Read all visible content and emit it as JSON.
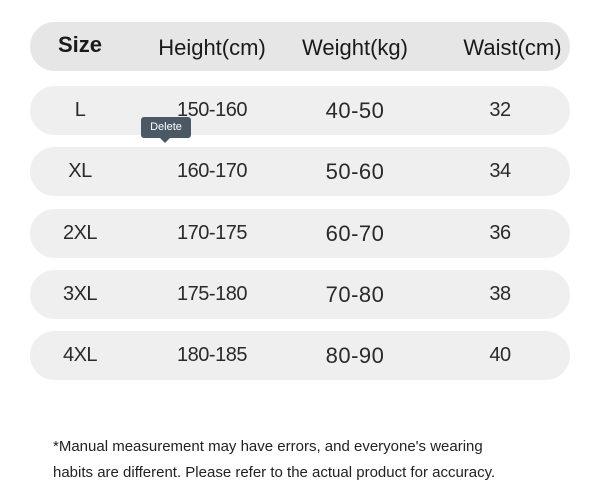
{
  "table": {
    "headers": [
      "Size",
      "Height(cm)",
      "Weight(kg)",
      "Waist(cm)"
    ],
    "rows": [
      [
        "L",
        "150-160",
        "40-50",
        "32"
      ],
      [
        "XL",
        "160-170",
        "50-60",
        "34"
      ],
      [
        "2XL",
        "170-175",
        "60-70",
        "36"
      ],
      [
        "3XL",
        "175-180",
        "70-80",
        "38"
      ],
      [
        "4XL",
        "180-185",
        "80-90",
        "40"
      ]
    ]
  },
  "tooltip": {
    "label": "Delete"
  },
  "footnote": {
    "line1": "*Manual measurement may have errors, and everyone's wearing",
    "line2": "habits are different. Please refer to the actual product for accuracy."
  }
}
